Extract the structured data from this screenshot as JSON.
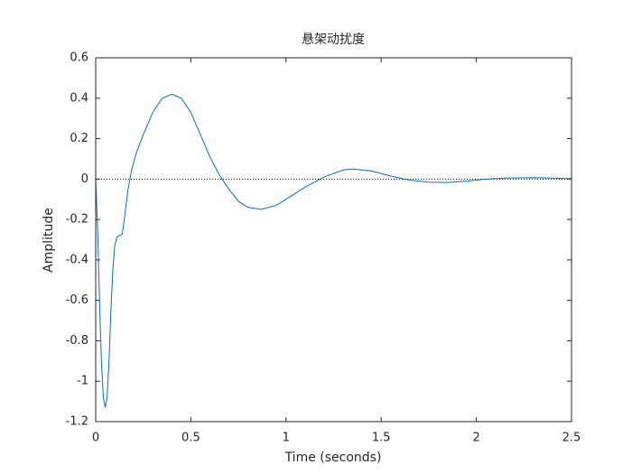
{
  "chart_data": {
    "type": "line",
    "title": "悬架动扰度",
    "xlabel": "Time (seconds)",
    "ylabel": "Amplitude",
    "x": [
      0,
      0.01,
      0.02,
      0.03,
      0.04,
      0.05,
      0.06,
      0.07,
      0.08,
      0.09,
      0.1,
      0.11,
      0.12,
      0.13,
      0.14,
      0.15,
      0.17,
      0.19,
      0.21,
      0.25,
      0.3,
      0.35,
      0.4,
      0.45,
      0.5,
      0.55,
      0.6,
      0.65,
      0.7,
      0.75,
      0.8,
      0.87,
      0.95,
      1.0,
      1.1,
      1.2,
      1.3,
      1.35,
      1.45,
      1.55,
      1.65,
      1.75,
      1.85,
      1.95,
      2.05,
      2.15,
      2.3,
      2.4,
      2.5
    ],
    "series": [
      {
        "color": "#0072bd",
        "values": [
          0,
          -0.25,
          -0.6,
          -0.9,
          -1.08,
          -1.13,
          -1.08,
          -0.9,
          -0.65,
          -0.45,
          -0.33,
          -0.29,
          -0.28,
          -0.28,
          -0.27,
          -0.2,
          -0.05,
          0.05,
          0.12,
          0.22,
          0.33,
          0.4,
          0.42,
          0.4,
          0.33,
          0.22,
          0.11,
          0.02,
          -0.05,
          -0.11,
          -0.14,
          -0.15,
          -0.13,
          -0.1,
          -0.04,
          0.01,
          0.045,
          0.05,
          0.04,
          0.015,
          -0.005,
          -0.015,
          -0.017,
          -0.01,
          0,
          0.005,
          0.007,
          0.005,
          0.002
        ]
      }
    ],
    "xlim": [
      0,
      2.5
    ],
    "xticks": [
      0,
      0.5,
      1,
      1.5,
      2,
      2.5
    ],
    "ylim": [
      -1.2,
      0.6
    ],
    "yticks": [
      -1.2,
      -1,
      -0.8,
      -0.6,
      -0.4,
      -0.2,
      0,
      0.2,
      0.4,
      0.6
    ],
    "zero_line": true,
    "grid": false
  }
}
